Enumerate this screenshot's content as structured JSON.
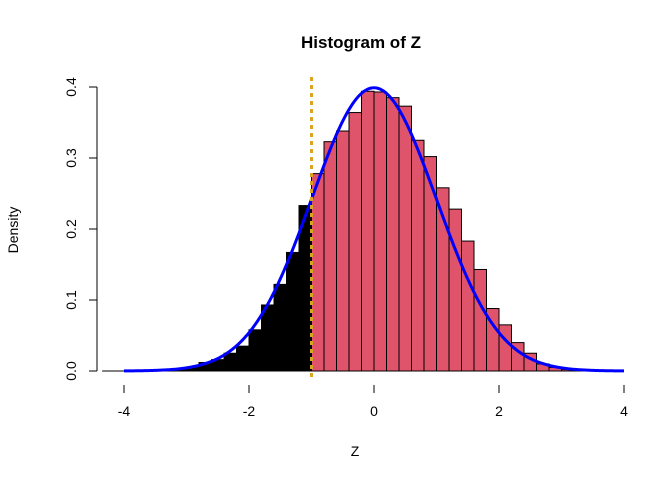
{
  "chart_data": {
    "type": "bar",
    "title": "Histogram of Z",
    "xlabel": "Z",
    "ylabel": "Density",
    "xlim": [
      -4.35,
      4.0
    ],
    "ylim": [
      0,
      0.4
    ],
    "x_ticks": [
      -4,
      -2,
      0,
      2,
      4
    ],
    "y_ticks": [
      0.0,
      0.1,
      0.2,
      0.3,
      0.4
    ],
    "x_tick_labels": [
      "-4",
      "-2",
      "0",
      "2",
      "4"
    ],
    "y_tick_labels": [
      "0.0",
      "0.1",
      "0.2",
      "0.3",
      "0.4"
    ],
    "bin_width": 0.2,
    "bins": [
      {
        "x0": -3.4,
        "x1": -3.2,
        "density": 0.001
      },
      {
        "x0": -3.2,
        "x1": -3.0,
        "density": 0.002
      },
      {
        "x0": -3.0,
        "x1": -2.8,
        "density": 0.005
      },
      {
        "x0": -2.8,
        "x1": -2.6,
        "density": 0.012
      },
      {
        "x0": -2.6,
        "x1": -2.4,
        "density": 0.016
      },
      {
        "x0": -2.4,
        "x1": -2.2,
        "density": 0.025
      },
      {
        "x0": -2.2,
        "x1": -2.0,
        "density": 0.035
      },
      {
        "x0": -2.0,
        "x1": -1.8,
        "density": 0.058
      },
      {
        "x0": -1.8,
        "x1": -1.6,
        "density": 0.093
      },
      {
        "x0": -1.6,
        "x1": -1.4,
        "density": 0.122
      },
      {
        "x0": -1.4,
        "x1": -1.2,
        "density": 0.167
      },
      {
        "x0": -1.2,
        "x1": -1.0,
        "density": 0.233
      },
      {
        "x0": -1.0,
        "x1": -0.8,
        "density": 0.278
      },
      {
        "x0": -0.8,
        "x1": -0.6,
        "density": 0.323
      },
      {
        "x0": -0.6,
        "x1": -0.4,
        "density": 0.338
      },
      {
        "x0": -0.4,
        "x1": -0.2,
        "density": 0.364
      },
      {
        "x0": -0.2,
        "x1": 0.0,
        "density": 0.394
      },
      {
        "x0": 0.0,
        "x1": 0.2,
        "density": 0.393
      },
      {
        "x0": 0.2,
        "x1": 0.4,
        "density": 0.385
      },
      {
        "x0": 0.4,
        "x1": 0.6,
        "density": 0.373
      },
      {
        "x0": 0.6,
        "x1": 0.8,
        "density": 0.325
      },
      {
        "x0": 0.8,
        "x1": 1.0,
        "density": 0.302
      },
      {
        "x0": 1.0,
        "x1": 1.2,
        "density": 0.258
      },
      {
        "x0": 1.2,
        "x1": 1.4,
        "density": 0.228
      },
      {
        "x0": 1.4,
        "x1": 1.6,
        "density": 0.183
      },
      {
        "x0": 1.6,
        "x1": 1.8,
        "density": 0.143
      },
      {
        "x0": 1.8,
        "x1": 2.0,
        "density": 0.088
      },
      {
        "x0": 2.0,
        "x1": 2.2,
        "density": 0.065
      },
      {
        "x0": 2.2,
        "x1": 2.4,
        "density": 0.04
      },
      {
        "x0": 2.4,
        "x1": 2.6,
        "density": 0.025
      },
      {
        "x0": 2.6,
        "x1": 2.8,
        "density": 0.01
      },
      {
        "x0": 2.8,
        "x1": 3.0,
        "density": 0.005
      },
      {
        "x0": 3.0,
        "x1": 3.2,
        "density": 0.002
      }
    ],
    "cutoff": -1.0,
    "fill_left": "#000000",
    "fill_right": "#df536b",
    "bar_border": "#000000",
    "curve": {
      "type": "normal-density",
      "mean": 0,
      "sd": 1,
      "x_range": [
        -4,
        4
      ],
      "color": "#0000ff"
    },
    "vline": {
      "x": -1.0,
      "color": "#daa520",
      "style": "dashed"
    },
    "grid": false
  }
}
